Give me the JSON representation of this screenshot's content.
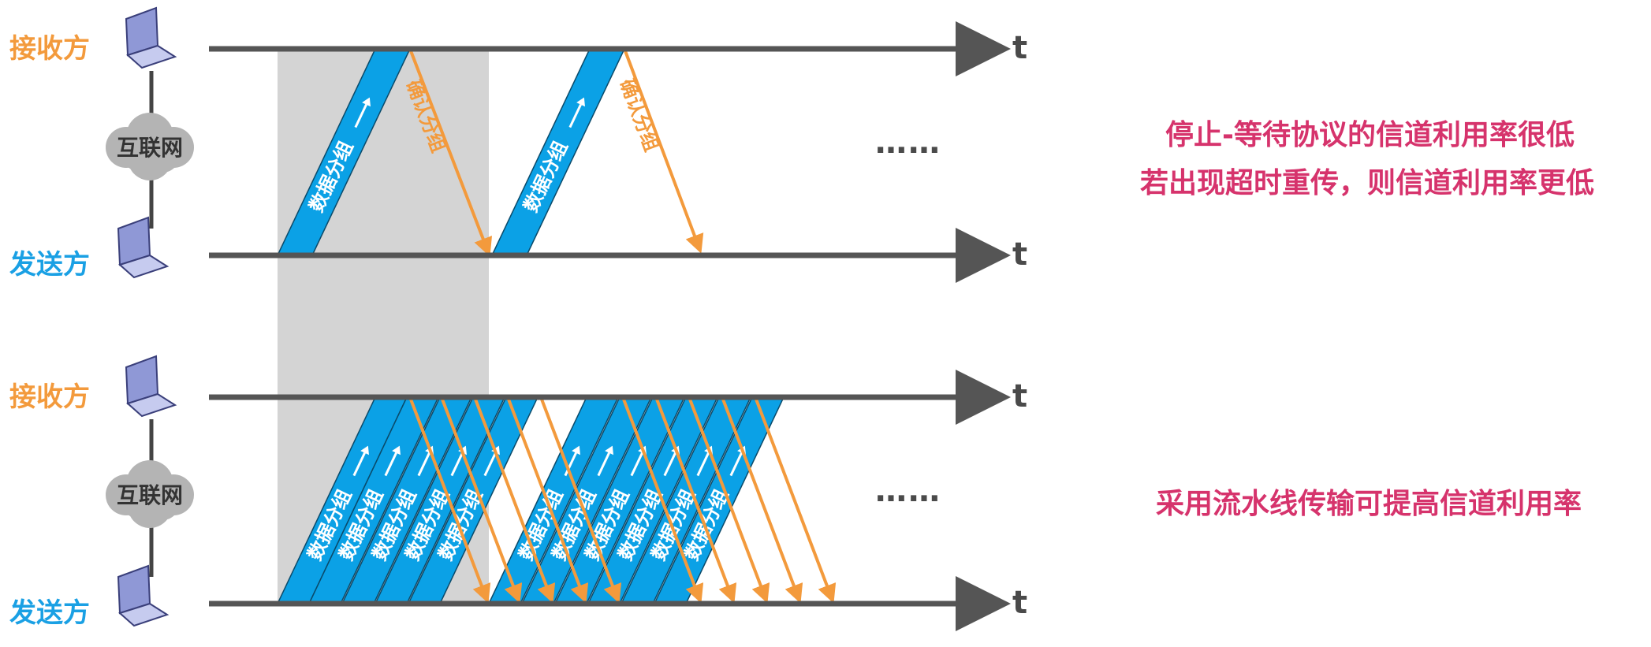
{
  "colors": {
    "receiver": "#f39a3c",
    "sender": "#1aa0e4",
    "packet_fill": "#0ba1e6",
    "ack_line": "#f39a3c",
    "timeline": "#555555",
    "shade": "#d4d4d4",
    "note": "#d6336c",
    "cloud": "#b4b4b4",
    "computer": "#8f98d6"
  },
  "top": {
    "receiver_label": "接收方",
    "sender_label": "发送方",
    "network_label": "互联网",
    "time_label_receiver": "t",
    "time_label_sender": "t",
    "data_packet_label": "数据分组",
    "ack_label": "确认分组",
    "ellipsis": "……",
    "note_lines": [
      "停止-等待协议的信道利用率很低",
      "若出现超时重传，则信道利用率更低"
    ]
  },
  "bottom": {
    "receiver_label": "接收方",
    "sender_label": "发送方",
    "network_label": "互联网",
    "time_label_receiver": "t",
    "time_label_sender": "t",
    "data_packet_label": "数据分组",
    "ellipsis": "……",
    "note": "采用流水线传输可提高信道利用率"
  }
}
